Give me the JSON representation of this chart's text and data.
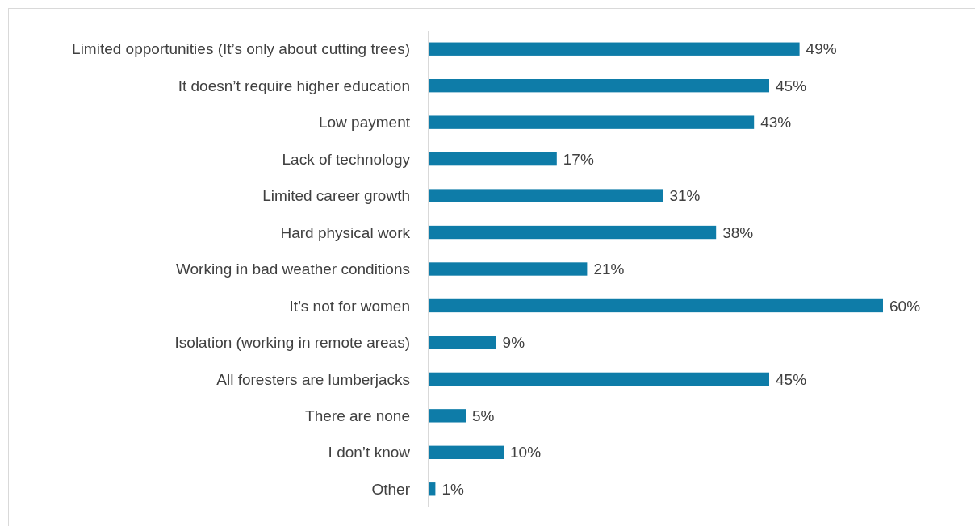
{
  "chart_data": {
    "type": "bar",
    "orientation": "horizontal",
    "categories": [
      "Limited opportunities (It’s only about cutting trees)",
      "It doesn’t require higher education",
      "Low payment",
      "Lack of technology",
      "Limited career growth",
      "Hard physical work",
      "Working in bad weather conditions",
      "It’s not for women",
      "Isolation (working in remote areas)",
      "All foresters are lumberjacks",
      "There are none",
      "I don’t know",
      "Other"
    ],
    "values": [
      49,
      45,
      43,
      17,
      31,
      38,
      21,
      60,
      9,
      45,
      5,
      10,
      1
    ],
    "value_labels": [
      "49%",
      "45%",
      "43%",
      "17%",
      "31%",
      "38%",
      "21%",
      "60%",
      "9%",
      "45%",
      "5%",
      "10%",
      "1%"
    ],
    "color": "#0e7ca8"
  }
}
